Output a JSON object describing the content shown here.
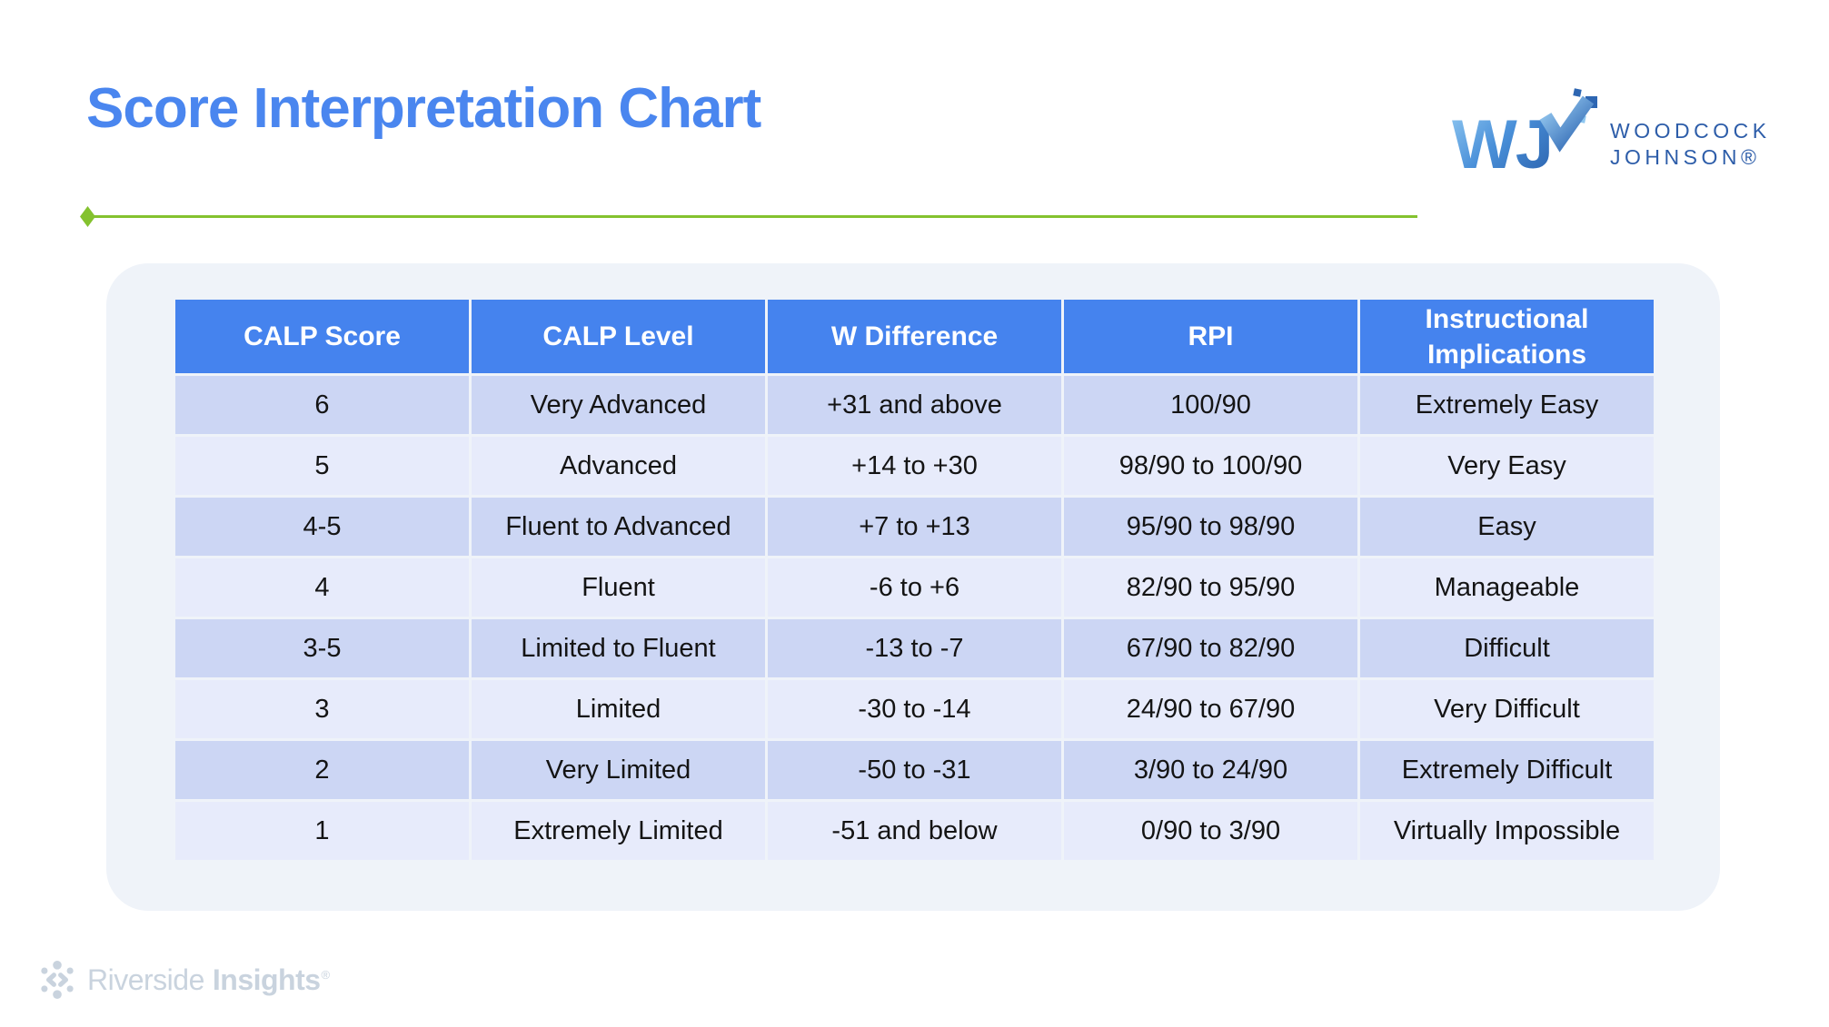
{
  "slide": {
    "title": "Score Interpretation Chart"
  },
  "header_logo": {
    "monogram": "WJ",
    "name_line1": "WOODCOCK",
    "name_line2": "JOHNSON®"
  },
  "footer_logo": {
    "name_regular": "Riverside",
    "name_bold": "Insights",
    "registered_mark": "®"
  },
  "colors": {
    "title_blue": "#4a86ef",
    "table_header_blue": "#4583ee",
    "row_dark_lavender": "#ccd6f4",
    "row_light_lavender": "#e7ebfb",
    "accent_green": "#84c22f",
    "panel_background": "#eff3f9",
    "wj_navy": "#2d5da9",
    "footer_gray": "#c9d3de"
  },
  "chart_data": {
    "type": "table",
    "title": "Score Interpretation Chart",
    "columns": [
      "CALP Score",
      "CALP Level",
      "W Difference",
      "RPI",
      "Instructional Implications"
    ],
    "rows": [
      [
        "6",
        "Very Advanced",
        "+31 and above",
        "100/90",
        "Extremely Easy"
      ],
      [
        "5",
        "Advanced",
        "+14 to +30",
        "98/90 to 100/90",
        "Very Easy"
      ],
      [
        "4-5",
        "Fluent to Advanced",
        "+7 to +13",
        "95/90 to 98/90",
        "Easy"
      ],
      [
        "4",
        "Fluent",
        "-6 to +6",
        "82/90 to 95/90",
        "Manageable"
      ],
      [
        "3-5",
        "Limited to Fluent",
        "-13 to -7",
        "67/90 to 82/90",
        "Difficult"
      ],
      [
        "3",
        "Limited",
        "-30 to -14",
        "24/90 to 67/90",
        "Very Difficult"
      ],
      [
        "2",
        "Very Limited",
        "-50 to -31",
        "3/90 to 24/90",
        "Extremely Difficult"
      ],
      [
        "1",
        "Extremely Limited",
        "-51 and below",
        "0/90 to 3/90",
        "Virtually Impossible"
      ]
    ],
    "layout": {
      "striped": true,
      "header_position": "top",
      "grid": "white 3px gaps between cells"
    }
  }
}
